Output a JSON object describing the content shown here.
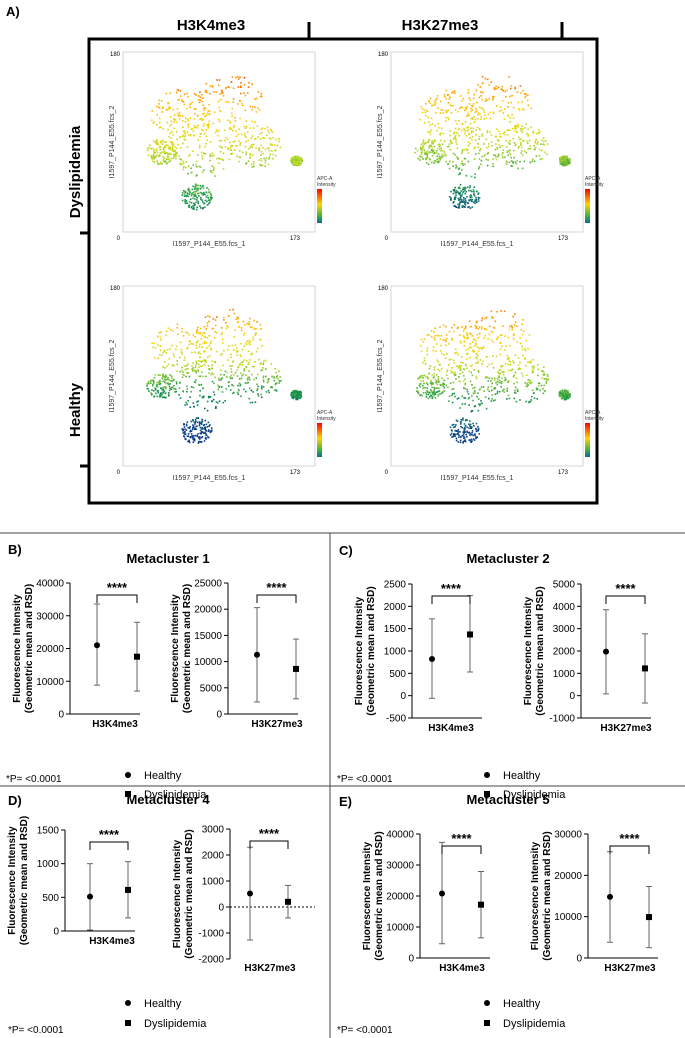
{
  "figure": {
    "panel_a": {
      "label": "A)",
      "col_headers": [
        "H3K4me3",
        "H3K27me3"
      ],
      "row_headers": [
        "Dyslipidemia",
        "Healthy"
      ],
      "tsne": {
        "x_axis_label": "I1597_P144_E55.fcs_1",
        "y_axis_label": "I1597_P144_E55.fcs_2",
        "x_min": "0",
        "x_max": "173",
        "y_max": "180",
        "legend_title_1": "APC-A",
        "legend_title_2": "Intensity"
      }
    },
    "legend": {
      "healthy": "Healthy",
      "dyslipidemia": "Dyslipidemia"
    },
    "footnote": "*P= <0.0001",
    "ylabel_line1": "Fluorescence Intensity",
    "ylabel_line2": "(Geometric mean and RSD)",
    "colors": {
      "axis": "#000000",
      "frame": "#000000",
      "tsne_high": "#ff0000",
      "tsne_mid": "#ffd500",
      "tsne_low": "#00a040",
      "tsne_vlow": "#0a3d8f"
    }
  },
  "chart_data": [
    {
      "panel": "B)",
      "title": "Metacluster 1",
      "subplots": [
        {
          "type": "scatter",
          "xlabel": "H3K4me3",
          "ylim": [
            0,
            40000
          ],
          "ticks": [
            0,
            10000,
            20000,
            30000,
            40000
          ],
          "significance": "****",
          "zero_line": false,
          "series": [
            {
              "name": "Healthy",
              "mean": 21000,
              "lower": 8800,
              "upper": 33600
            },
            {
              "name": "Dyslipidemia",
              "mean": 17500,
              "lower": 7000,
              "upper": 28000
            }
          ]
        },
        {
          "type": "scatter",
          "xlabel": "H3K27me3",
          "ylim": [
            0,
            25000
          ],
          "ticks": [
            0,
            5000,
            10000,
            15000,
            20000,
            25000
          ],
          "significance": "****",
          "zero_line": false,
          "series": [
            {
              "name": "Healthy",
              "mean": 11300,
              "lower": 2300,
              "upper": 20300
            },
            {
              "name": "Dyslipidemia",
              "mean": 8600,
              "lower": 2900,
              "upper": 14300
            }
          ]
        }
      ]
    },
    {
      "panel": "C)",
      "title": "Metacluster 2",
      "subplots": [
        {
          "type": "scatter",
          "xlabel": "H3K4me3",
          "ylim": [
            -500,
            2500
          ],
          "ticks": [
            -500,
            0,
            500,
            1000,
            1500,
            2000,
            2500
          ],
          "significance": "****",
          "zero_line": false,
          "series": [
            {
              "name": "Healthy",
              "mean": 820,
              "lower": -60,
              "upper": 1720
            },
            {
              "name": "Dyslipidemia",
              "mean": 1370,
              "lower": 530,
              "upper": 2240
            }
          ]
        },
        {
          "type": "scatter",
          "xlabel": "H3K27me3",
          "ylim": [
            -1000,
            5000
          ],
          "ticks": [
            -1000,
            0,
            1000,
            2000,
            3000,
            4000,
            5000
          ],
          "significance": "****",
          "zero_line": false,
          "series": [
            {
              "name": "Healthy",
              "mean": 1970,
              "lower": 80,
              "upper": 3850
            },
            {
              "name": "Dyslipidemia",
              "mean": 1220,
              "lower": -330,
              "upper": 2770
            }
          ]
        }
      ]
    },
    {
      "panel": "D)",
      "title": "Metacluster 4",
      "subplots": [
        {
          "type": "scatter",
          "xlabel": "H3K4me3",
          "ylim": [
            0,
            1500
          ],
          "ticks": [
            0,
            500,
            1000,
            1500
          ],
          "significance": "****",
          "zero_line": false,
          "series": [
            {
              "name": "Healthy",
              "mean": 510,
              "lower": 15,
              "upper": 1000
            },
            {
              "name": "Dyslipidemia",
              "mean": 610,
              "lower": 195,
              "upper": 1030
            }
          ]
        },
        {
          "type": "scatter",
          "xlabel": "H3K27me3",
          "ylim": [
            -2000,
            3000
          ],
          "ticks": [
            -2000,
            -1000,
            0,
            1000,
            2000,
            3000
          ],
          "significance": "****",
          "zero_line": true,
          "series": [
            {
              "name": "Healthy",
              "mean": 520,
              "lower": -1270,
              "upper": 2300
            },
            {
              "name": "Dyslipidemia",
              "mean": 200,
              "lower": -420,
              "upper": 830
            }
          ]
        }
      ]
    },
    {
      "panel": "E)",
      "title": "Metacluster 5",
      "subplots": [
        {
          "type": "scatter",
          "xlabel": "H3K4me3",
          "ylim": [
            0,
            40000
          ],
          "ticks": [
            0,
            10000,
            20000,
            30000,
            40000
          ],
          "significance": "****",
          "zero_line": false,
          "series": [
            {
              "name": "Healthy",
              "mean": 20800,
              "lower": 4600,
              "upper": 37300
            },
            {
              "name": "Dyslipidemia",
              "mean": 17200,
              "lower": 6500,
              "upper": 27900
            }
          ]
        },
        {
          "type": "scatter",
          "xlabel": "H3K27me3",
          "ylim": [
            0,
            30000
          ],
          "ticks": [
            0,
            10000,
            20000,
            30000
          ],
          "significance": "****",
          "zero_line": false,
          "series": [
            {
              "name": "Healthy",
              "mean": 14800,
              "lower": 3800,
              "upper": 25700
            },
            {
              "name": "Dyslipidemia",
              "mean": 9900,
              "lower": 2500,
              "upper": 17300
            }
          ]
        }
      ]
    }
  ]
}
